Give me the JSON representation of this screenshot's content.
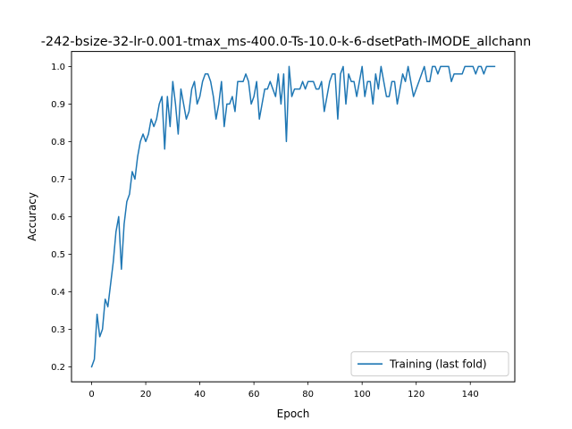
{
  "chart_data": {
    "type": "line",
    "title": "-242-bsize-32-lr-0.001-tmax_ms-400.0-Ts-10.0-k-6-dsetPath-IMODE_allchann",
    "xlabel": "Epoch",
    "ylabel": "Accuracy",
    "xlim": [
      -7.45,
      156.45
    ],
    "ylim": [
      0.16,
      1.04
    ],
    "xticks": [
      0,
      20,
      40,
      60,
      80,
      100,
      120,
      140
    ],
    "yticks": [
      0.2,
      0.3,
      0.4,
      0.5,
      0.6,
      0.7,
      0.8,
      0.9,
      1.0
    ],
    "xtick_labels": [
      "0",
      "20",
      "40",
      "60",
      "80",
      "100",
      "120",
      "140"
    ],
    "ytick_labels": [
      "0.2",
      "0.3",
      "0.4",
      "0.5",
      "0.6",
      "0.7",
      "0.8",
      "0.9",
      "1.0"
    ],
    "grid": false,
    "legend_position": "lower-right",
    "series": [
      {
        "name": "Training (last fold)",
        "color": "#1f77b4",
        "x": [
          0,
          1,
          2,
          3,
          4,
          5,
          6,
          7,
          8,
          9,
          10,
          11,
          12,
          13,
          14,
          15,
          16,
          17,
          18,
          19,
          20,
          21,
          22,
          23,
          24,
          25,
          26,
          27,
          28,
          29,
          30,
          31,
          32,
          33,
          34,
          35,
          36,
          37,
          38,
          39,
          40,
          41,
          42,
          43,
          44,
          45,
          46,
          47,
          48,
          49,
          50,
          51,
          52,
          53,
          54,
          55,
          56,
          57,
          58,
          59,
          60,
          61,
          62,
          63,
          64,
          65,
          66,
          67,
          68,
          69,
          70,
          71,
          72,
          73,
          74,
          75,
          76,
          77,
          78,
          79,
          80,
          81,
          82,
          83,
          84,
          85,
          86,
          87,
          88,
          89,
          90,
          91,
          92,
          93,
          94,
          95,
          96,
          97,
          98,
          99,
          100,
          101,
          102,
          103,
          104,
          105,
          106,
          107,
          108,
          109,
          110,
          111,
          112,
          113,
          114,
          115,
          116,
          117,
          118,
          119,
          120,
          121,
          122,
          123,
          124,
          125,
          126,
          127,
          128,
          129,
          130,
          131,
          132,
          133,
          134,
          135,
          136,
          137,
          138,
          139,
          140,
          141,
          142,
          143,
          144,
          145,
          146,
          147,
          148,
          149
        ],
        "values": [
          0.2,
          0.22,
          0.34,
          0.28,
          0.3,
          0.38,
          0.36,
          0.42,
          0.48,
          0.56,
          0.6,
          0.46,
          0.58,
          0.64,
          0.66,
          0.72,
          0.7,
          0.76,
          0.8,
          0.82,
          0.8,
          0.82,
          0.86,
          0.84,
          0.86,
          0.9,
          0.92,
          0.78,
          0.92,
          0.84,
          0.96,
          0.9,
          0.82,
          0.94,
          0.9,
          0.86,
          0.88,
          0.94,
          0.96,
          0.9,
          0.92,
          0.96,
          0.98,
          0.98,
          0.96,
          0.92,
          0.86,
          0.9,
          0.96,
          0.84,
          0.9,
          0.9,
          0.92,
          0.88,
          0.96,
          0.96,
          0.96,
          0.98,
          0.96,
          0.9,
          0.92,
          0.96,
          0.86,
          0.9,
          0.94,
          0.94,
          0.96,
          0.94,
          0.92,
          0.98,
          0.9,
          0.98,
          0.8,
          1.0,
          0.92,
          0.94,
          0.94,
          0.94,
          0.96,
          0.94,
          0.96,
          0.96,
          0.96,
          0.94,
          0.94,
          0.96,
          0.88,
          0.92,
          0.96,
          0.98,
          0.98,
          0.86,
          0.98,
          1.0,
          0.9,
          0.98,
          0.96,
          0.96,
          0.92,
          0.96,
          1.0,
          0.92,
          0.96,
          0.96,
          0.9,
          0.98,
          0.94,
          1.0,
          0.96,
          0.92,
          0.92,
          0.96,
          0.96,
          0.9,
          0.94,
          0.98,
          0.96,
          1.0,
          0.96,
          0.92,
          0.94,
          0.96,
          0.98,
          1.0,
          0.96,
          0.96,
          1.0,
          1.0,
          0.98,
          1.0,
          1.0,
          1.0,
          1.0,
          0.96,
          0.98,
          0.98,
          0.98,
          0.98,
          1.0,
          1.0,
          1.0,
          1.0,
          0.98,
          1.0,
          1.0,
          0.98,
          1.0,
          1.0,
          1.0,
          1.0
        ]
      }
    ]
  }
}
